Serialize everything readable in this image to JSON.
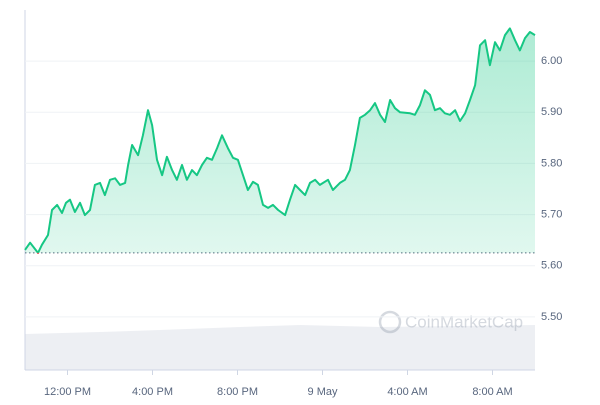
{
  "chart_data": {
    "type": "line",
    "x": [
      10.0,
      10.24,
      10.61,
      10.8,
      11.08,
      11.27,
      11.51,
      11.74,
      11.93,
      12.12,
      12.35,
      12.59,
      12.82,
      13.06,
      13.29,
      13.53,
      13.76,
      14.0,
      14.24,
      14.47,
      14.71,
      14.85,
      15.04,
      15.32,
      15.55,
      15.79,
      15.98,
      16.21,
      16.45,
      16.68,
      16.92,
      17.15,
      17.39,
      17.62,
      17.86,
      18.09,
      18.33,
      18.56,
      18.8,
      19.04,
      19.27,
      19.55,
      19.79,
      20.02,
      20.26,
      20.49,
      20.73,
      20.96,
      21.2,
      21.44,
      21.67,
      21.91,
      22.24,
      22.47,
      22.71,
      22.94,
      23.18,
      23.41,
      23.65,
      23.88,
      24.26,
      24.49,
      24.82,
      25.06,
      25.29,
      25.53,
      25.76,
      26.0,
      26.24,
      26.47,
      26.71,
      26.94,
      27.18,
      27.41,
      27.65,
      28.12,
      28.35,
      28.59,
      28.82,
      29.06,
      29.29,
      29.53,
      29.76,
      30.0,
      30.24,
      30.47,
      30.71,
      30.94,
      31.18,
      31.41,
      31.65,
      31.88,
      32.12,
      32.35,
      32.59,
      32.82,
      33.06,
      33.29,
      33.53,
      33.76,
      34.0
    ],
    "series": [
      {
        "color": "#16c784",
        "values": [
          5.631,
          5.645,
          5.625,
          5.641,
          5.66,
          5.709,
          5.719,
          5.703,
          5.723,
          5.729,
          5.705,
          5.723,
          5.699,
          5.709,
          5.758,
          5.762,
          5.738,
          5.768,
          5.771,
          5.758,
          5.762,
          5.797,
          5.836,
          5.816,
          5.855,
          5.904,
          5.875,
          5.807,
          5.777,
          5.813,
          5.787,
          5.768,
          5.797,
          5.768,
          5.787,
          5.777,
          5.797,
          5.811,
          5.807,
          5.83,
          5.855,
          5.83,
          5.811,
          5.807,
          5.777,
          5.748,
          5.764,
          5.758,
          5.719,
          5.713,
          5.719,
          5.709,
          5.699,
          5.729,
          5.758,
          5.748,
          5.738,
          5.762,
          5.768,
          5.758,
          5.768,
          5.748,
          5.762,
          5.768,
          5.787,
          5.836,
          5.889,
          5.895,
          5.904,
          5.918,
          5.895,
          5.881,
          5.924,
          5.908,
          5.9,
          5.898,
          5.895,
          5.914,
          5.943,
          5.934,
          5.904,
          5.908,
          5.898,
          5.895,
          5.904,
          5.883,
          5.898,
          5.924,
          5.953,
          6.031,
          6.041,
          5.992,
          6.037,
          6.021,
          6.051,
          6.064,
          6.041,
          6.021,
          6.045,
          6.057,
          6.051
        ]
      }
    ],
    "below_color": "#ea3943",
    "reference_line": 5.625,
    "xlim": [
      10,
      34
    ],
    "xticks": [
      {
        "value": 12,
        "label": "12:00 PM"
      },
      {
        "value": 16,
        "label": "4:00 PM"
      },
      {
        "value": 20,
        "label": "8:00 PM"
      },
      {
        "value": 24,
        "label": "9 May"
      },
      {
        "value": 28,
        "label": "4:00 AM"
      },
      {
        "value": 32,
        "label": "8:00 AM"
      }
    ],
    "ylim": [
      5.4,
      6.1
    ],
    "yticks": [
      {
        "value": 5.5,
        "label": "5.50"
      },
      {
        "value": 5.6,
        "label": "5.60"
      },
      {
        "value": 5.7,
        "label": "5.70"
      },
      {
        "value": 5.8,
        "label": "5.80"
      },
      {
        "value": 5.9,
        "label": "5.90"
      },
      {
        "value": 6.0,
        "label": "6.00"
      }
    ],
    "grid": true,
    "watermark": "CoinMarketCap"
  }
}
